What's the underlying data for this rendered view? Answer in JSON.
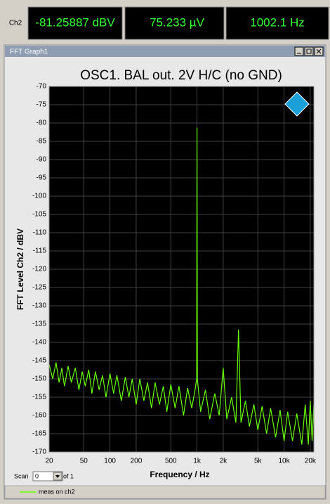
{
  "header": {
    "channel": "Ch2",
    "readouts": [
      "-81.25887 dBV",
      "75.233 µV",
      "1002.1 Hz"
    ]
  },
  "window": {
    "title": "FFT Graph1"
  },
  "scan": {
    "label": "Scan",
    "value": "0",
    "of": "of 1"
  },
  "chart_data": {
    "type": "line",
    "title": "OSC1. BAL out. 2V H/C (no GND)",
    "x_label": "Frequency / Hz",
    "y_label": "FFT Level Ch2 / dBV",
    "xscale": "log",
    "grid": true,
    "background": "#000000",
    "xlim": [
      20,
      22000
    ],
    "ylim": [
      -170,
      -70
    ],
    "xticks": [
      20,
      50,
      100,
      200,
      500,
      {
        "value": 1000,
        "label": "1k"
      },
      {
        "value": 2000,
        "label": "2k"
      },
      {
        "value": 5000,
        "label": "5k"
      },
      {
        "value": 10000,
        "label": "10k"
      },
      {
        "value": 20000,
        "label": "20k"
      }
    ],
    "yticks": [
      -70,
      -75,
      -80,
      -85,
      -90,
      -95,
      -100,
      -105,
      -110,
      -115,
      -120,
      -125,
      -130,
      -135,
      -140,
      -145,
      -150,
      -155,
      -160,
      -165,
      -170
    ],
    "x": [
      20,
      22,
      24,
      26,
      28,
      30,
      33,
      36,
      40,
      44,
      48,
      52,
      57,
      62,
      68,
      75,
      82,
      90,
      100,
      110,
      120,
      135,
      150,
      165,
      180,
      200,
      220,
      245,
      270,
      300,
      330,
      370,
      410,
      450,
      500,
      560,
      620,
      700,
      780,
      870,
      950,
      990,
      1000,
      1010,
      1100,
      1250,
      1400,
      1600,
      1800,
      2000,
      2200,
      2500,
      2800,
      3000,
      3200,
      3600,
      4000,
      4500,
      5000,
      5600,
      6300,
      7000,
      8000,
      9000,
      10000,
      11000,
      12500,
      14000,
      16000,
      17500,
      19000,
      20000,
      21000,
      22000
    ],
    "series": [
      {
        "name": "meas on ch2",
        "color": "#66ff00",
        "values": [
          -146,
          -150,
          -145.5,
          -151,
          -147,
          -152,
          -146.5,
          -151,
          -147,
          -153,
          -148,
          -152,
          -147.5,
          -154,
          -148,
          -153,
          -149,
          -155,
          -148.5,
          -154,
          -149,
          -156,
          -149.5,
          -155,
          -150,
          -157,
          -150,
          -156,
          -151,
          -158,
          -151,
          -157,
          -152,
          -159,
          -151.5,
          -158,
          -152,
          -160,
          -152.5,
          -158,
          -153,
          -150,
          -81.26,
          -150,
          -159,
          -153,
          -161,
          -154,
          -160,
          -147,
          -161,
          -155,
          -162,
          -136.5,
          -162,
          -156,
          -163,
          -157,
          -164,
          -157.5,
          -165,
          -158,
          -166,
          -158.5,
          -167,
          -159,
          -167,
          -159.5,
          -168,
          -157,
          -168,
          -156,
          -167,
          -157
        ]
      }
    ]
  }
}
